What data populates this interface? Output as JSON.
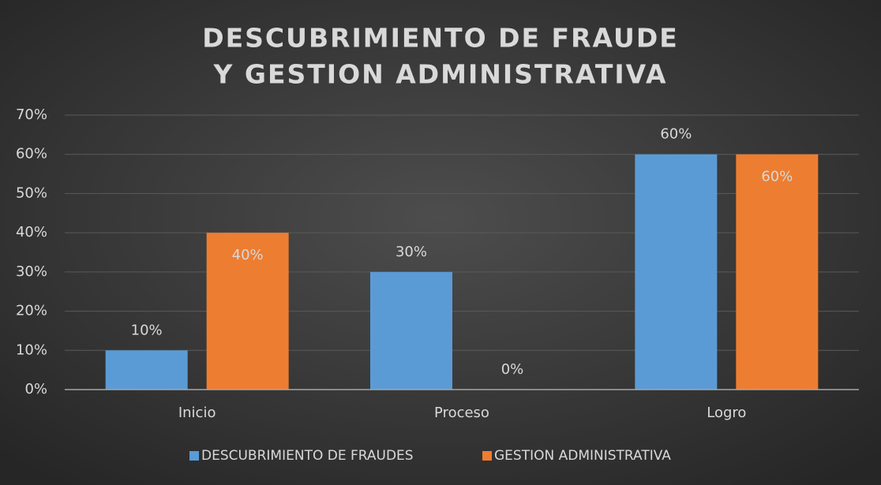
{
  "chart_data": {
    "type": "bar",
    "title": [
      "DESCUBRIMIENTO DE FRAUDE",
      "Y GESTION ADMINISTRATIVA"
    ],
    "categories": [
      "Inicio",
      "Proceso",
      "Logro"
    ],
    "series": [
      {
        "name": "DESCUBRIMIENTO DE FRAUDES",
        "color": "#5b9bd5",
        "values": [
          10,
          30,
          60
        ],
        "value_labels": [
          "10%",
          "30%",
          "60%"
        ]
      },
      {
        "name": "GESTION ADMINISTRATIVA",
        "color": "#ed7d31",
        "values": [
          40,
          0,
          60
        ],
        "value_labels": [
          "40%",
          "0%",
          "60%"
        ]
      }
    ],
    "ylim": [
      0,
      70
    ],
    "yticks": [
      {
        "value": 0,
        "label": "0%"
      },
      {
        "value": 10,
        "label": "10%"
      },
      {
        "value": 20,
        "label": "20%"
      },
      {
        "value": 30,
        "label": "30%"
      },
      {
        "value": 40,
        "label": "40%"
      },
      {
        "value": 50,
        "label": "50%"
      },
      {
        "value": 60,
        "label": "60%"
      },
      {
        "value": 70,
        "label": "70%"
      }
    ],
    "grid": true,
    "legend": "bottom"
  }
}
